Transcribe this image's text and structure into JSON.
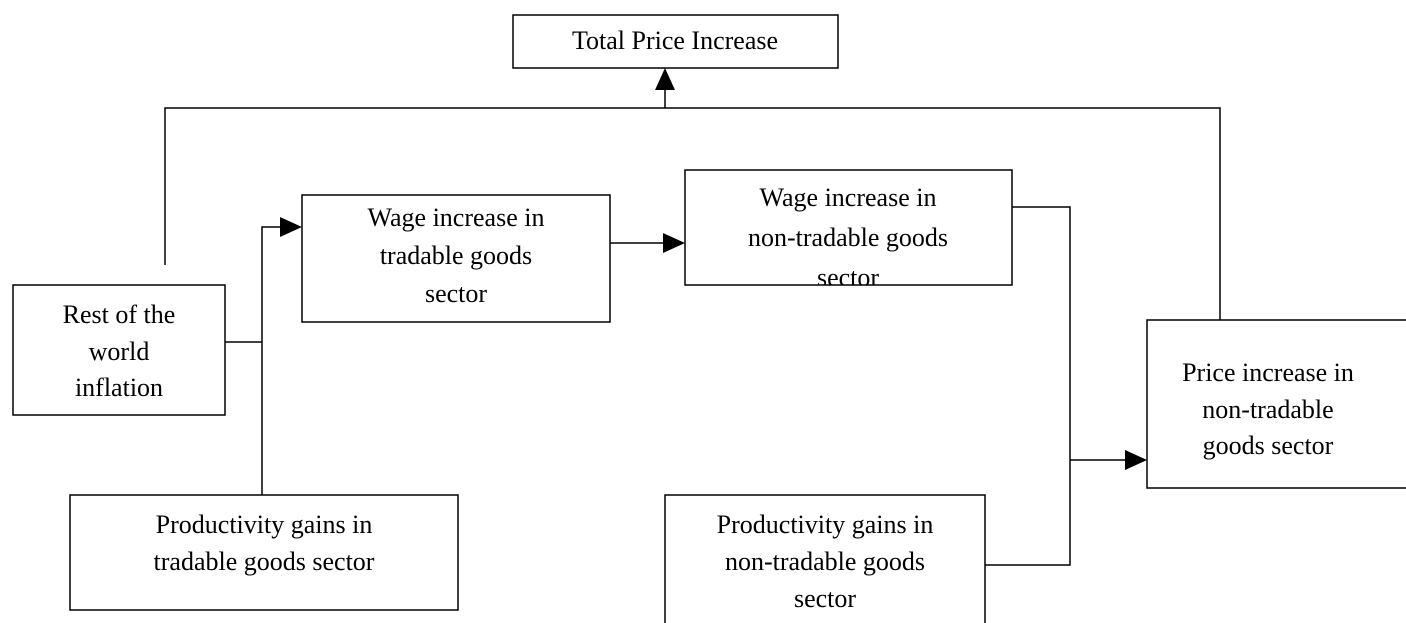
{
  "nodes": [
    {
      "lines": [
        "Total Price Increase"
      ]
    },
    {
      "lines": [
        "Rest of the",
        "world",
        "inflation"
      ]
    },
    {
      "lines": [
        "Wage increase in",
        "tradable goods",
        "sector"
      ]
    },
    {
      "lines": [
        "Wage increase in",
        "non-tradable goods",
        "sector"
      ]
    },
    {
      "lines": [
        "Price increase in",
        "non-tradable",
        "goods sector"
      ]
    },
    {
      "lines": [
        "Productivity gains in",
        "tradable goods sector"
      ]
    },
    {
      "lines": [
        "Productivity gains in",
        "non-tradable goods",
        "sector"
      ]
    }
  ]
}
